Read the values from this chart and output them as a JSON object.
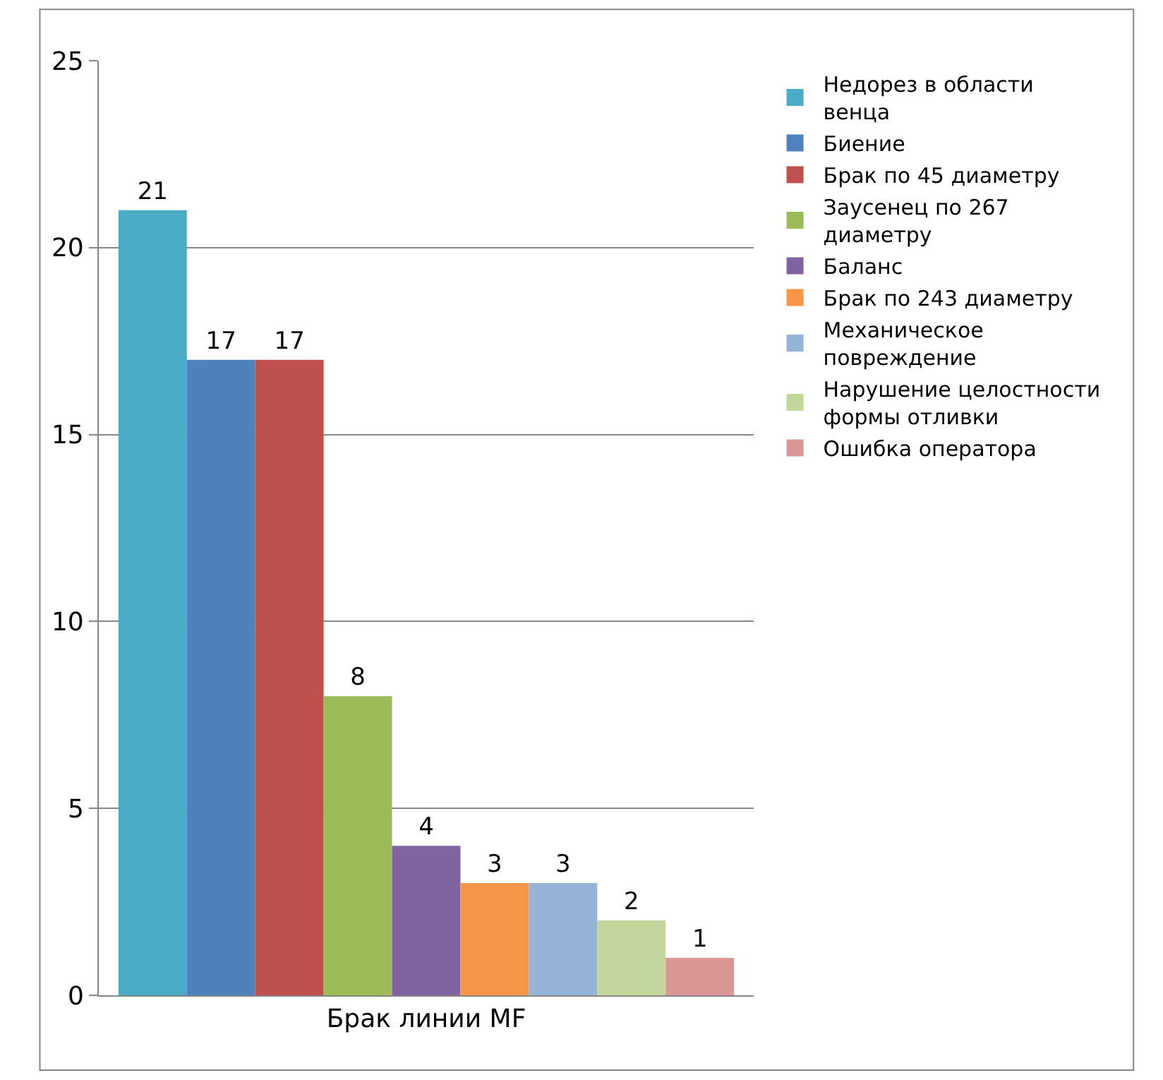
{
  "chart_data": {
    "type": "bar",
    "categories": [
      "Брак линии MF"
    ],
    "series": [
      {
        "name": "Недорез в области венца",
        "color": "#4bacc6",
        "values": [
          21
        ]
      },
      {
        "name": "Биение",
        "color": "#4f81bd",
        "values": [
          17
        ]
      },
      {
        "name": "Брак по 45 диаметру",
        "color": "#c0504d",
        "values": [
          17
        ]
      },
      {
        "name": "Заусенец по 267 диаметру",
        "color": "#9bbb59",
        "values": [
          8
        ]
      },
      {
        "name": "Баланс",
        "color": "#8064a2",
        "values": [
          4
        ]
      },
      {
        "name": "Брак по 243 диаметру",
        "color": "#f79646",
        "values": [
          3
        ]
      },
      {
        "name": "Механическое повреждение",
        "color": "#95b3d7",
        "values": [
          3
        ]
      },
      {
        "name": "Нарушение целостности формы отливки",
        "color": "#c3d69b",
        "values": [
          2
        ]
      },
      {
        "name": "Ошибка оператора",
        "color": "#d99694",
        "values": [
          1
        ]
      }
    ],
    "ylim": [
      0,
      25
    ],
    "yticks": [
      0,
      5,
      10,
      15,
      20,
      25
    ],
    "grid": "y",
    "legend": "right",
    "data_labels": true
  }
}
